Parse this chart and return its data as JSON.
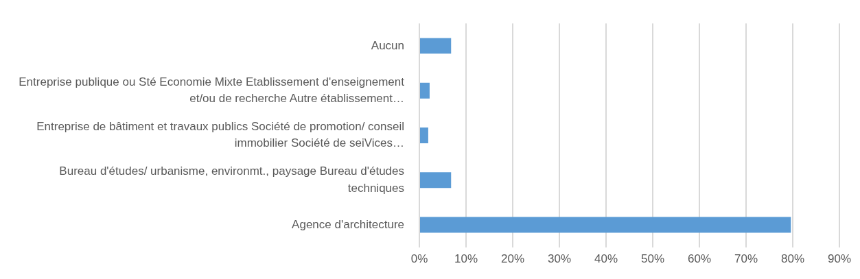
{
  "chart_data": {
    "type": "bar",
    "orientation": "horizontal",
    "categories": [
      "Aucun",
      "Entreprise publique ou Sté Economie Mixte Etablissement d'enseignement et/ou de recherche Autre établissement…",
      "Entreprise de bâtiment et travaux publics Société de promotion/ conseil immobilier Société de seiVices…",
      "Bureau d'études/ urbanisme, environmt., paysage Bureau d'études techniques",
      "Agence d'architecture"
    ],
    "values": [
      6.8,
      2.2,
      1.9,
      6.8,
      79.6
    ],
    "color": "#5b9bd5",
    "xlim": [
      0,
      90
    ],
    "xticks": [
      {
        "value": 0,
        "label": "0%"
      },
      {
        "value": 10,
        "label": "10%"
      },
      {
        "value": 20,
        "label": "20%"
      },
      {
        "value": 30,
        "label": "30%"
      },
      {
        "value": 40,
        "label": "40%"
      },
      {
        "value": 50,
        "label": "50%"
      },
      {
        "value": 60,
        "label": "60%"
      },
      {
        "value": 70,
        "label": "70%"
      },
      {
        "value": 80,
        "label": "80%"
      },
      {
        "value": 90,
        "label": "90%"
      }
    ],
    "grid": "x",
    "legend": false
  }
}
